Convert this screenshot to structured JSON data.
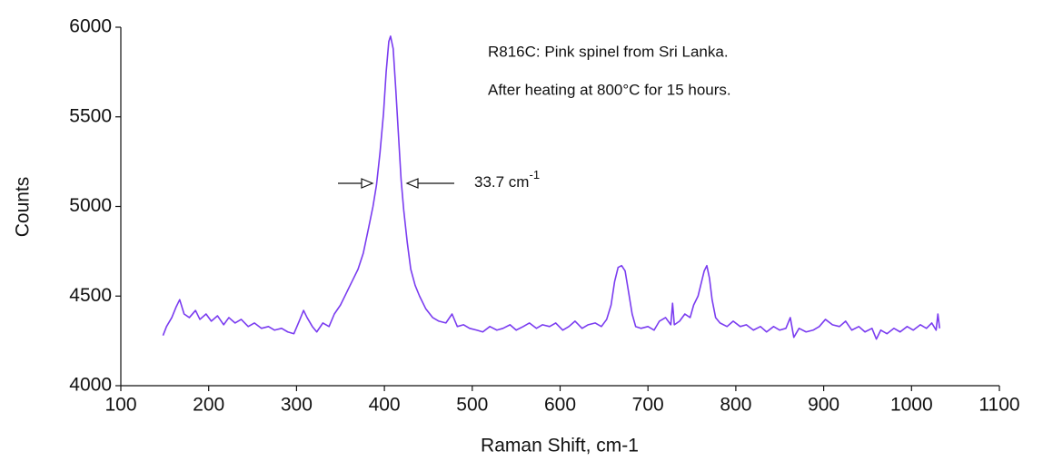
{
  "chart_data": {
    "type": "line",
    "x_label": "Raman Shift, cm-1",
    "y_label": "Counts",
    "annotations": [
      {
        "text": "R816C: Pink spinel from Sri Lanka."
      },
      {
        "text": "After heating at 800°C for 15 hours."
      },
      {
        "text": "33.7 cm",
        "superscript": "-1"
      }
    ],
    "x": [
      148,
      152,
      158,
      163,
      167,
      172,
      178,
      185,
      190,
      197,
      203,
      210,
      217,
      223,
      230,
      237,
      245,
      252,
      260,
      268,
      275,
      283,
      290,
      297,
      303,
      308,
      312,
      318,
      323,
      330,
      337,
      343,
      350,
      357,
      363,
      370,
      376,
      382,
      387,
      391,
      395,
      399,
      402,
      405,
      407,
      410,
      413,
      416,
      419,
      422,
      426,
      430,
      435,
      440,
      447,
      455,
      462,
      470,
      477,
      483,
      490,
      497,
      505,
      512,
      520,
      528,
      535,
      543,
      550,
      558,
      565,
      573,
      580,
      588,
      595,
      603,
      610,
      617,
      625,
      632,
      640,
      647,
      653,
      658,
      662,
      666,
      670,
      674,
      678,
      682,
      686,
      692,
      700,
      707,
      713,
      720,
      726,
      728,
      730,
      736,
      742,
      748,
      752,
      757,
      761,
      764,
      767,
      770,
      773,
      777,
      782,
      790,
      797,
      805,
      812,
      820,
      828,
      835,
      843,
      850,
      857,
      862,
      866,
      872,
      880,
      888,
      895,
      902,
      910,
      918,
      925,
      932,
      940,
      947,
      955,
      960,
      965,
      972,
      980,
      987,
      995,
      1002,
      1010,
      1017,
      1023,
      1028,
      1030,
      1032
    ],
    "series": [
      {
        "name": "R816C",
        "color": "#7a3cf0",
        "values": [
          4280,
          4330,
          4380,
          4440,
          4480,
          4400,
          4380,
          4420,
          4370,
          4400,
          4360,
          4390,
          4340,
          4380,
          4350,
          4370,
          4330,
          4350,
          4320,
          4330,
          4310,
          4320,
          4300,
          4290,
          4360,
          4420,
          4380,
          4330,
          4300,
          4350,
          4330,
          4400,
          4450,
          4520,
          4580,
          4650,
          4740,
          4880,
          5000,
          5120,
          5300,
          5520,
          5750,
          5920,
          5950,
          5880,
          5650,
          5400,
          5150,
          4980,
          4800,
          4650,
          4560,
          4500,
          4430,
          4380,
          4360,
          4350,
          4400,
          4330,
          4340,
          4320,
          4310,
          4300,
          4330,
          4310,
          4320,
          4340,
          4310,
          4330,
          4350,
          4320,
          4340,
          4330,
          4350,
          4310,
          4330,
          4360,
          4320,
          4340,
          4350,
          4330,
          4370,
          4450,
          4580,
          4660,
          4670,
          4640,
          4520,
          4400,
          4330,
          4320,
          4330,
          4310,
          4360,
          4380,
          4340,
          4460,
          4340,
          4360,
          4400,
          4380,
          4450,
          4500,
          4580,
          4640,
          4670,
          4600,
          4480,
          4380,
          4350,
          4330,
          4360,
          4330,
          4340,
          4310,
          4330,
          4300,
          4330,
          4310,
          4320,
          4380,
          4270,
          4320,
          4300,
          4310,
          4330,
          4370,
          4340,
          4330,
          4360,
          4310,
          4330,
          4300,
          4320,
          4260,
          4310,
          4290,
          4320,
          4300,
          4330,
          4310,
          4340,
          4320,
          4350,
          4310,
          4400,
          4320
        ]
      }
    ],
    "xlim": [
      100,
      1100
    ],
    "xticks": [
      100,
      200,
      300,
      400,
      500,
      600,
      700,
      800,
      900,
      1000,
      1100
    ],
    "ylim": [
      4000,
      6000
    ],
    "yticks": [
      4000,
      4500,
      5000,
      5500,
      6000
    ],
    "grid": false
  }
}
